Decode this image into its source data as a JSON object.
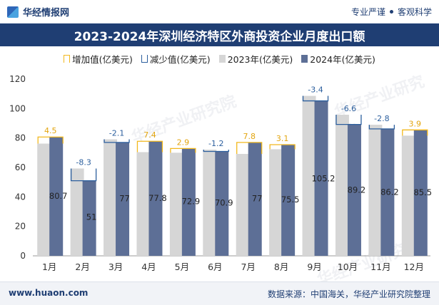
{
  "header": {
    "brand": "华经情报网",
    "tag1": "专业严谨",
    "tag2": "客观科学"
  },
  "watermark": "华经产业研究院",
  "chart_data": {
    "type": "bar",
    "title": "2023-2024年深圳经济特区外商投资企业月度出口额",
    "categories": [
      "1月",
      "2月",
      "3月",
      "4月",
      "5月",
      "6月",
      "7月",
      "8月",
      "9月",
      "10月",
      "11月",
      "12月"
    ],
    "series": [
      {
        "name": "2023年(亿美元)",
        "values": [
          76.2,
          59.3,
          79.1,
          70.4,
          70.0,
          72.1,
          69.2,
          72.4,
          108.6,
          95.8,
          89.0,
          81.6
        ]
      },
      {
        "name": "2024年(亿美元)",
        "values": [
          80.7,
          51,
          77,
          77.8,
          72.9,
          70.9,
          77,
          75.5,
          105.2,
          89.2,
          86.2,
          85.5
        ]
      }
    ],
    "change": [
      "4.5",
      "-8.3",
      "-2.1",
      "7.4",
      "2.9",
      "-1.2",
      "7.8",
      "3.1",
      "-3.4",
      "-6.6",
      "-2.8",
      "3.9"
    ],
    "legend": [
      "增加值(亿美元)",
      "减少值(亿美元)",
      "2023年(亿美元)",
      "2024年(亿美元)"
    ],
    "ylim": [
      0,
      120
    ],
    "yticks": [
      0,
      20,
      40,
      60,
      80,
      100,
      120
    ],
    "colors": {
      "y2023": "#d6d6d6",
      "y2024": "#5d6f96",
      "increase": "#f2b81d",
      "decrease": "#2c5f9e"
    }
  },
  "footer": {
    "website": "www.huaon.com",
    "source": "数据来源：中国海关，华经产业研究院整理"
  }
}
